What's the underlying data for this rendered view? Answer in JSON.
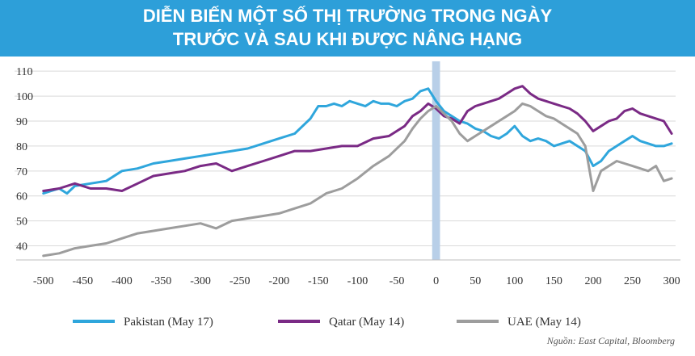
{
  "title_lines": [
    "DIỄN BIẾN MỘT SỐ THỊ TRƯỜNG TRONG NGÀY",
    "TRƯỚC VÀ SAU KHI ĐƯỢC NÂNG HẠNG"
  ],
  "source": {
    "prefix": "Nguồn:",
    "text": "East Capital, Bloomberg"
  },
  "chart_data": {
    "type": "line",
    "title": "DIỄN BIẾN MỘT SỐ THỊ TRƯỜNG TRONG NGÀY TRƯỚC VÀ SAU KHI ĐƯỢC NÂNG HẠNG",
    "xlabel": "",
    "ylabel": "",
    "xlim": [
      -510,
      305
    ],
    "ylim": [
      35,
      112
    ],
    "x_ticks": [
      -500,
      -450,
      -400,
      -350,
      -300,
      -250,
      -200,
      -150,
      -100,
      -50,
      0,
      50,
      100,
      150,
      200,
      250,
      300
    ],
    "x_tick_labels": [
      "-500",
      "-450",
      "-400",
      "-350",
      "-300",
      "-250",
      "-200",
      "-150",
      "-100",
      "-50",
      "0",
      "50",
      "100",
      "150",
      "200",
      "250",
      "300"
    ],
    "y_ticks": [
      40,
      50,
      60,
      70,
      80,
      90,
      100,
      110
    ],
    "y_tick_labels": [
      "40",
      "50",
      "60",
      "70",
      "80",
      "90",
      "100",
      "110"
    ],
    "grid": "horizontal",
    "highlight_band": {
      "x": [
        -5,
        5
      ],
      "color": "#b8cfe8"
    },
    "legend_position": "bottom",
    "series": [
      {
        "name": "Pakistan (May 17)",
        "color": "#2fa6dc",
        "points": [
          [
            -500,
            61
          ],
          [
            -490,
            62
          ],
          [
            -480,
            63
          ],
          [
            -470,
            61
          ],
          [
            -460,
            64
          ],
          [
            -440,
            65
          ],
          [
            -420,
            66
          ],
          [
            -400,
            70
          ],
          [
            -380,
            71
          ],
          [
            -360,
            73
          ],
          [
            -340,
            74
          ],
          [
            -320,
            75
          ],
          [
            -300,
            76
          ],
          [
            -280,
            77
          ],
          [
            -260,
            78
          ],
          [
            -240,
            79
          ],
          [
            -220,
            81
          ],
          [
            -200,
            83
          ],
          [
            -180,
            85
          ],
          [
            -160,
            91
          ],
          [
            -150,
            96
          ],
          [
            -140,
            96
          ],
          [
            -130,
            97
          ],
          [
            -120,
            96
          ],
          [
            -110,
            98
          ],
          [
            -100,
            97
          ],
          [
            -90,
            96
          ],
          [
            -80,
            98
          ],
          [
            -70,
            97
          ],
          [
            -60,
            97
          ],
          [
            -50,
            96
          ],
          [
            -40,
            98
          ],
          [
            -30,
            99
          ],
          [
            -20,
            102
          ],
          [
            -10,
            103
          ],
          [
            0,
            98
          ],
          [
            10,
            94
          ],
          [
            20,
            92
          ],
          [
            30,
            90
          ],
          [
            40,
            89
          ],
          [
            50,
            87
          ],
          [
            60,
            86
          ],
          [
            70,
            84
          ],
          [
            80,
            83
          ],
          [
            90,
            85
          ],
          [
            100,
            88
          ],
          [
            110,
            84
          ],
          [
            120,
            82
          ],
          [
            130,
            83
          ],
          [
            140,
            82
          ],
          [
            150,
            80
          ],
          [
            160,
            81
          ],
          [
            170,
            82
          ],
          [
            180,
            80
          ],
          [
            190,
            78
          ],
          [
            200,
            72
          ],
          [
            210,
            74
          ],
          [
            220,
            78
          ],
          [
            230,
            80
          ],
          [
            240,
            82
          ],
          [
            250,
            84
          ],
          [
            260,
            82
          ],
          [
            270,
            81
          ],
          [
            280,
            80
          ],
          [
            290,
            80
          ],
          [
            300,
            81
          ]
        ]
      },
      {
        "name": "Qatar (May 14)",
        "color": "#7a2a85",
        "points": [
          [
            -500,
            62
          ],
          [
            -480,
            63
          ],
          [
            -460,
            65
          ],
          [
            -440,
            63
          ],
          [
            -420,
            63
          ],
          [
            -400,
            62
          ],
          [
            -380,
            65
          ],
          [
            -360,
            68
          ],
          [
            -340,
            69
          ],
          [
            -320,
            70
          ],
          [
            -300,
            72
          ],
          [
            -280,
            73
          ],
          [
            -260,
            70
          ],
          [
            -240,
            72
          ],
          [
            -220,
            74
          ],
          [
            -200,
            76
          ],
          [
            -180,
            78
          ],
          [
            -160,
            78
          ],
          [
            -140,
            79
          ],
          [
            -120,
            80
          ],
          [
            -100,
            80
          ],
          [
            -80,
            83
          ],
          [
            -60,
            84
          ],
          [
            -40,
            88
          ],
          [
            -30,
            92
          ],
          [
            -20,
            94
          ],
          [
            -10,
            97
          ],
          [
            0,
            95
          ],
          [
            10,
            92
          ],
          [
            20,
            91
          ],
          [
            30,
            89
          ],
          [
            40,
            94
          ],
          [
            50,
            96
          ],
          [
            60,
            97
          ],
          [
            70,
            98
          ],
          [
            80,
            99
          ],
          [
            90,
            101
          ],
          [
            100,
            103
          ],
          [
            110,
            104
          ],
          [
            120,
            101
          ],
          [
            130,
            99
          ],
          [
            140,
            98
          ],
          [
            150,
            97
          ],
          [
            160,
            96
          ],
          [
            170,
            95
          ],
          [
            180,
            93
          ],
          [
            190,
            90
          ],
          [
            200,
            86
          ],
          [
            210,
            88
          ],
          [
            220,
            90
          ],
          [
            230,
            91
          ],
          [
            240,
            94
          ],
          [
            250,
            95
          ],
          [
            260,
            93
          ],
          [
            270,
            92
          ],
          [
            280,
            91
          ],
          [
            290,
            90
          ],
          [
            300,
            85
          ]
        ]
      },
      {
        "name": "UAE (May 14)",
        "color": "#9d9d9d",
        "points": [
          [
            -500,
            36
          ],
          [
            -480,
            37
          ],
          [
            -460,
            39
          ],
          [
            -440,
            40
          ],
          [
            -420,
            41
          ],
          [
            -400,
            43
          ],
          [
            -380,
            45
          ],
          [
            -360,
            46
          ],
          [
            -340,
            47
          ],
          [
            -320,
            48
          ],
          [
            -300,
            49
          ],
          [
            -280,
            47
          ],
          [
            -260,
            50
          ],
          [
            -240,
            51
          ],
          [
            -220,
            52
          ],
          [
            -200,
            53
          ],
          [
            -180,
            55
          ],
          [
            -160,
            57
          ],
          [
            -140,
            61
          ],
          [
            -120,
            63
          ],
          [
            -100,
            67
          ],
          [
            -80,
            72
          ],
          [
            -60,
            76
          ],
          [
            -40,
            82
          ],
          [
            -30,
            87
          ],
          [
            -20,
            91
          ],
          [
            -10,
            94
          ],
          [
            0,
            96
          ],
          [
            10,
            93
          ],
          [
            20,
            90
          ],
          [
            30,
            85
          ],
          [
            40,
            82
          ],
          [
            50,
            84
          ],
          [
            60,
            86
          ],
          [
            70,
            88
          ],
          [
            80,
            90
          ],
          [
            90,
            92
          ],
          [
            100,
            94
          ],
          [
            110,
            97
          ],
          [
            120,
            96
          ],
          [
            130,
            94
          ],
          [
            140,
            92
          ],
          [
            150,
            91
          ],
          [
            160,
            89
          ],
          [
            170,
            87
          ],
          [
            180,
            85
          ],
          [
            190,
            80
          ],
          [
            200,
            62
          ],
          [
            210,
            70
          ],
          [
            220,
            72
          ],
          [
            230,
            74
          ],
          [
            240,
            73
          ],
          [
            250,
            72
          ],
          [
            260,
            71
          ],
          [
            270,
            70
          ],
          [
            280,
            72
          ],
          [
            290,
            66
          ],
          [
            300,
            67
          ]
        ]
      }
    ]
  }
}
